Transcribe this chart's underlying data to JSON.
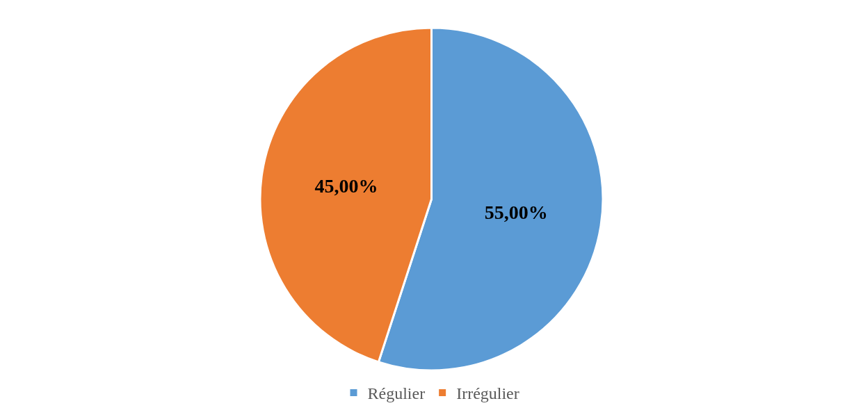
{
  "chart_data": {
    "type": "pie",
    "categories": [
      "Régulier",
      "Irrégulier"
    ],
    "values": [
      55,
      45
    ],
    "colors": [
      "#5b9bd5",
      "#ed7d31"
    ],
    "value_labels": [
      "55,00%",
      "45,00%"
    ],
    "legend": "bottom"
  }
}
